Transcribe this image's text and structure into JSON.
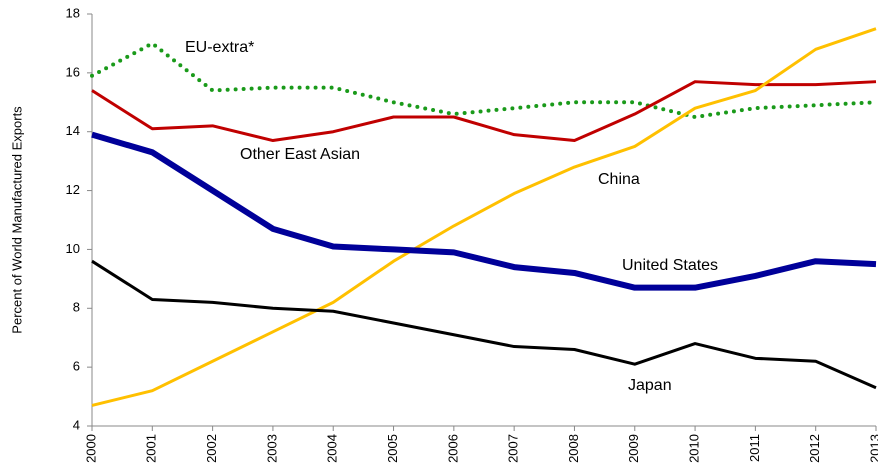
{
  "chart_data": {
    "type": "line",
    "y_label": "Percent of World Manufactured Exports",
    "x": [
      2000,
      2001,
      2002,
      2003,
      2004,
      2005,
      2006,
      2007,
      2008,
      2009,
      2010,
      2011,
      2012,
      2013
    ],
    "xlim": [
      2000,
      2013
    ],
    "xticks": [
      2000,
      2001,
      2002,
      2003,
      2004,
      2005,
      2006,
      2007,
      2008,
      2009,
      2010,
      2011,
      2012,
      2013
    ],
    "ylim": [
      4,
      18
    ],
    "yticks": [
      4,
      6,
      8,
      10,
      12,
      14,
      16,
      18
    ],
    "series": [
      {
        "name": "EU-extra*",
        "color": "#1a9a1a",
        "style": "dotted",
        "values": [
          15.9,
          17.0,
          15.4,
          15.5,
          15.5,
          15.0,
          14.6,
          14.8,
          15.0,
          15.0,
          14.5,
          14.8,
          14.9,
          15.0
        ]
      },
      {
        "name": "Other East Asian",
        "color": "#c00000",
        "style": "solid",
        "values": [
          15.4,
          14.1,
          14.2,
          13.7,
          14.0,
          14.5,
          14.5,
          13.9,
          13.7,
          14.6,
          15.7,
          15.6,
          15.6,
          15.7
        ]
      },
      {
        "name": "China",
        "color": "#ffc000",
        "style": "solid",
        "values": [
          4.7,
          5.2,
          6.2,
          7.2,
          8.2,
          9.6,
          10.8,
          11.9,
          12.8,
          13.5,
          14.8,
          15.4,
          16.8,
          17.5
        ]
      },
      {
        "name": "United States",
        "color": "#000099",
        "style": "thick",
        "values": [
          13.9,
          13.3,
          12.0,
          10.7,
          10.1,
          10.0,
          9.9,
          9.4,
          9.2,
          8.7,
          8.7,
          9.1,
          9.6,
          9.5
        ]
      },
      {
        "name": "Japan",
        "color": "#000000",
        "style": "solid",
        "values": [
          9.6,
          8.3,
          8.2,
          8.0,
          7.9,
          7.5,
          7.1,
          6.7,
          6.6,
          6.1,
          6.8,
          6.3,
          6.2,
          5.3
        ]
      }
    ]
  }
}
